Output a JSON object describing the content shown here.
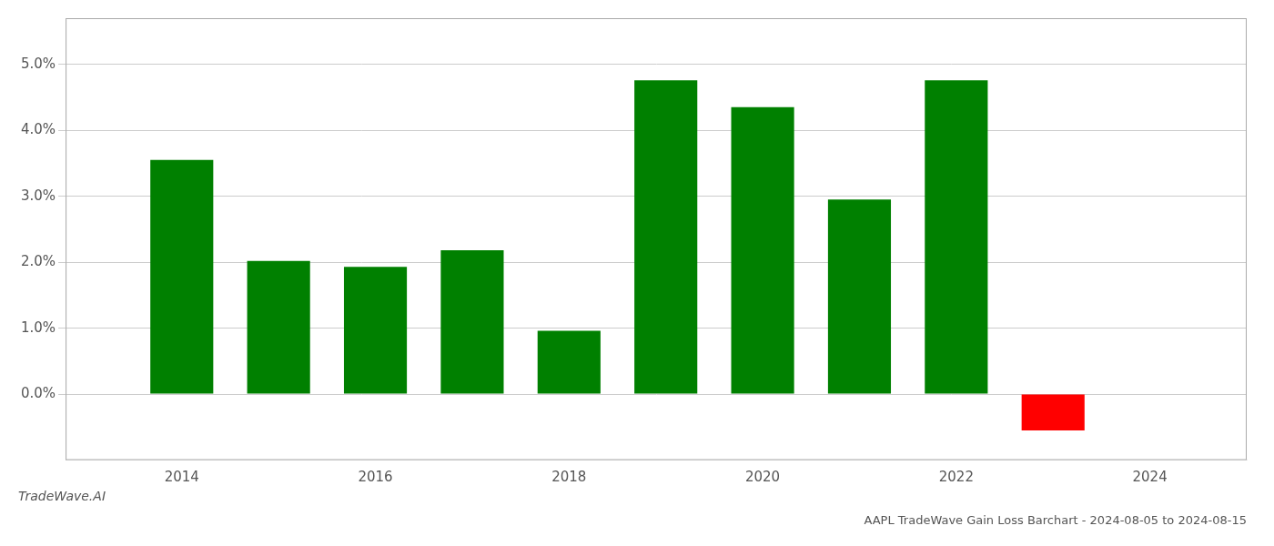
{
  "chart_data": {
    "type": "bar",
    "title": "AAPL TradeWave Gain Loss Barchart - 2024-08-05 to 2024-08-15",
    "annotations": [
      "TradeWave.AI"
    ],
    "x": [
      2014,
      2015,
      2016,
      2017,
      2018,
      2019,
      2020,
      2021,
      2022,
      2023
    ],
    "values": [
      0.0355,
      0.0202,
      0.0193,
      0.0218,
      0.0096,
      0.0476,
      0.0435,
      0.0295,
      0.0476,
      -0.0055
    ],
    "colors": [
      "#008000",
      "#008000",
      "#008000",
      "#008000",
      "#008000",
      "#008000",
      "#008000",
      "#008000",
      "#008000",
      "#ff0000"
    ],
    "xlim": [
      2012.8,
      2025.0
    ],
    "xticks": [
      2014,
      2016,
      2018,
      2020,
      2022,
      2024
    ],
    "ylim": [
      -0.01,
      0.057
    ],
    "yticks": [
      {
        "value": 0.0,
        "label": "0.0%"
      },
      {
        "value": 0.01,
        "label": "1.0%"
      },
      {
        "value": 0.02,
        "label": "2.0%"
      },
      {
        "value": 0.03,
        "label": "3.0%"
      },
      {
        "value": 0.04,
        "label": "4.0%"
      },
      {
        "value": 0.05,
        "label": "5.0%"
      }
    ],
    "grid": "y"
  }
}
